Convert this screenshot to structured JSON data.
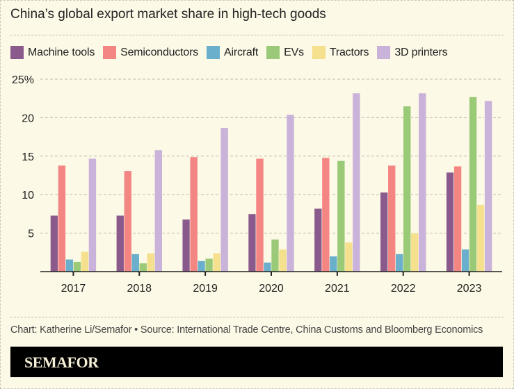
{
  "chart_data": {
    "type": "bar",
    "title": "China’s global export market share in high-tech goods",
    "xlabel": "",
    "ylabel": "",
    "categories": [
      "2017",
      "2018",
      "2019",
      "2020",
      "2021",
      "2022",
      "2023"
    ],
    "yticks": [
      "5",
      "10",
      "15",
      "20",
      "25%"
    ],
    "ytick_values": [
      5,
      10,
      15,
      20,
      25
    ],
    "ylim": [
      0,
      25
    ],
    "grid": true,
    "legend_position": "top-left",
    "series": [
      {
        "name": "Machine tools",
        "color": "#8b5a8c",
        "values": [
          7.3,
          7.3,
          6.8,
          7.5,
          8.2,
          10.3,
          12.9
        ]
      },
      {
        "name": "Semiconductors",
        "color": "#f38683",
        "values": [
          13.8,
          13.1,
          14.9,
          14.7,
          14.8,
          13.8,
          13.7
        ]
      },
      {
        "name": "Aircraft",
        "color": "#6aafcc",
        "values": [
          1.6,
          2.3,
          1.4,
          1.2,
          2.0,
          2.3,
          2.9
        ]
      },
      {
        "name": "EVs",
        "color": "#9aca78",
        "values": [
          1.3,
          1.1,
          1.7,
          4.2,
          14.4,
          21.5,
          22.7
        ]
      },
      {
        "name": "Tractors",
        "color": "#f4e08d",
        "values": [
          2.6,
          2.4,
          2.4,
          2.9,
          3.8,
          5.0,
          8.7
        ]
      },
      {
        "name": "3D printers",
        "color": "#cab3da",
        "values": [
          14.7,
          15.8,
          18.7,
          20.4,
          23.2,
          23.2,
          22.2
        ]
      }
    ]
  },
  "credit": "Chart: Katherine Li/Semafor • Source: International Trade Centre, China Customs and Bloomberg Economics",
  "brand": "SEMAFOR"
}
